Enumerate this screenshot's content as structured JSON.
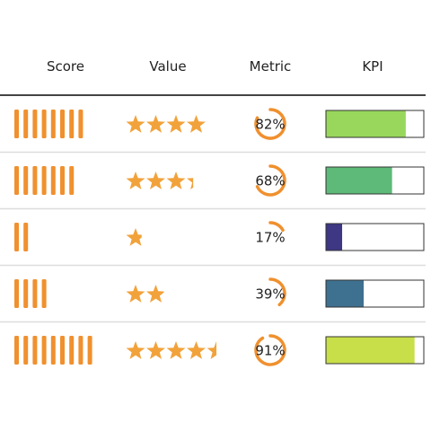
{
  "chart_data": {
    "type": "table",
    "columns": [
      "Score",
      "Value",
      "Metric",
      "KPI"
    ],
    "rows": [
      {
        "score": 0.82,
        "value": 0.82,
        "metric": 0.82,
        "kpi": 0.82,
        "metric_label": "82%"
      },
      {
        "score": 0.68,
        "value": 0.68,
        "metric": 0.68,
        "kpi": 0.68,
        "metric_label": "68%"
      },
      {
        "score": 0.17,
        "value": 0.17,
        "metric": 0.17,
        "kpi": 0.17,
        "metric_label": "17%"
      },
      {
        "score": 0.39,
        "value": 0.39,
        "metric": 0.39,
        "kpi": 0.39,
        "metric_label": "39%"
      },
      {
        "score": 0.91,
        "value": 0.91,
        "metric": 0.91,
        "kpi": 0.91,
        "metric_label": "91%"
      }
    ],
    "score_bar_max": 10,
    "star_max": 5,
    "colors": {
      "accent": "#f0902e",
      "star": "#f2a23a",
      "kpi_fills": [
        "#98d75c",
        "#5dba78",
        "#3e3784",
        "#3e7090",
        "#c8df4a"
      ],
      "grid": "#dddddd",
      "header_rule": "#444444"
    }
  }
}
